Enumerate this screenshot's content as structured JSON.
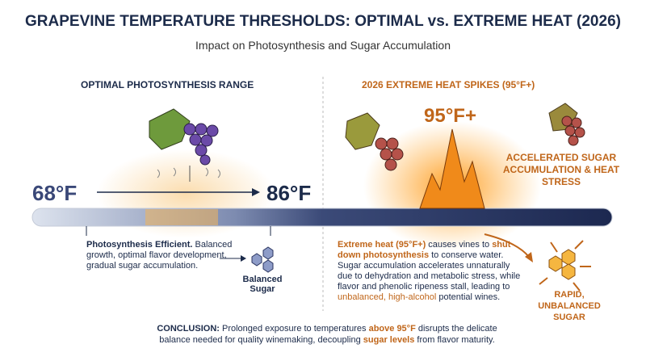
{
  "header": {
    "title": "GRAPEVINE TEMPERATURE THRESHOLDS: OPTIMAL vs. EXTREME HEAT (2026)",
    "subtitle": "Impact on Photosynthesis and Sugar Accumulation"
  },
  "left": {
    "heading": "OPTIMAL PHOTOSYNTHESIS RANGE",
    "min_temp": "68°F",
    "max_temp": "86°F",
    "description": [
      "Photosynthesis Efficient.",
      "Balanced growth, optimal flavor development, gradual sugar accumulation."
    ],
    "result": "Balanced Sugar"
  },
  "right": {
    "heading": "2026 EXTREME HEAT SPIKES (95°F+)",
    "spike_label": "95°F+",
    "effect": "ACCELERATED SUGAR ACCUMULATION & HEAT STRESS",
    "description": [
      "Extreme heat (95°F+)",
      " causes vines to ",
      "shut down photosynthesis",
      " to conserve water. Sugar accumulation accelerates unnaturally due to dehydration and metabolic stress, while flavor and phenolic ripeness stall, leading to ",
      "unbalanced, high-alcohol",
      " potential wines."
    ],
    "result": "RAPID, UNBALANCED SUGAR"
  },
  "conclusion": [
    "CONCLUSION:",
    " Prolonged exposure to temperatures ",
    "above 95°F",
    " disrupts the delicate balance needed for quality winemaking, decoupling ",
    "sugar levels",
    " from flavor maturity."
  ]
}
